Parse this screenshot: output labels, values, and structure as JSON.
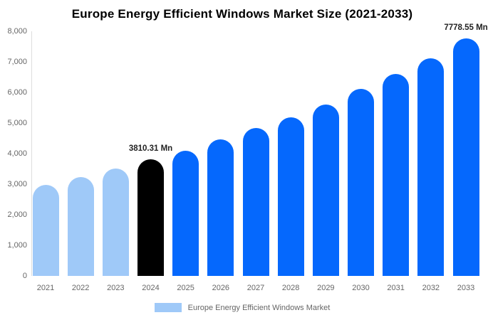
{
  "chart_data": {
    "type": "bar",
    "title": "Europe Energy Efficient Windows Market Size (2021-2033)",
    "categories": [
      "2021",
      "2022",
      "2023",
      "2024",
      "2025",
      "2026",
      "2027",
      "2028",
      "2029",
      "2030",
      "2031",
      "2032",
      "2033"
    ],
    "values": [
      2980,
      3230,
      3510,
      3810.31,
      4090,
      4460,
      4840,
      5190,
      5610,
      6110,
      6600,
      7120,
      7778.55
    ],
    "bar_colors": [
      "light",
      "light",
      "light",
      "highlight",
      "primary",
      "primary",
      "primary",
      "primary",
      "primary",
      "primary",
      "primary",
      "primary",
      "primary"
    ],
    "annotations": [
      {
        "category": "2024",
        "text": "3810.31 Mn"
      },
      {
        "category": "2033",
        "text": "7778.55 Mn"
      }
    ],
    "xlabel": "",
    "ylabel": "",
    "ylim": [
      0,
      8000
    ],
    "ytick_labels": [
      "0",
      "1,000",
      "2,000",
      "3,000",
      "4,000",
      "5,000",
      "6,000",
      "7,000",
      "8,000"
    ],
    "grid": "off",
    "legend_position": "bottom-center"
  },
  "colors": {
    "light": "#9FC9F8",
    "primary": "#0568FD",
    "highlight": "#000000",
    "axis_line": "#dddddd",
    "tick_text": "#666666",
    "annotation_text": "#222222"
  },
  "legend": {
    "label": "Europe Energy Efficient Windows Market",
    "swatch_color": "#9FC9F8"
  }
}
